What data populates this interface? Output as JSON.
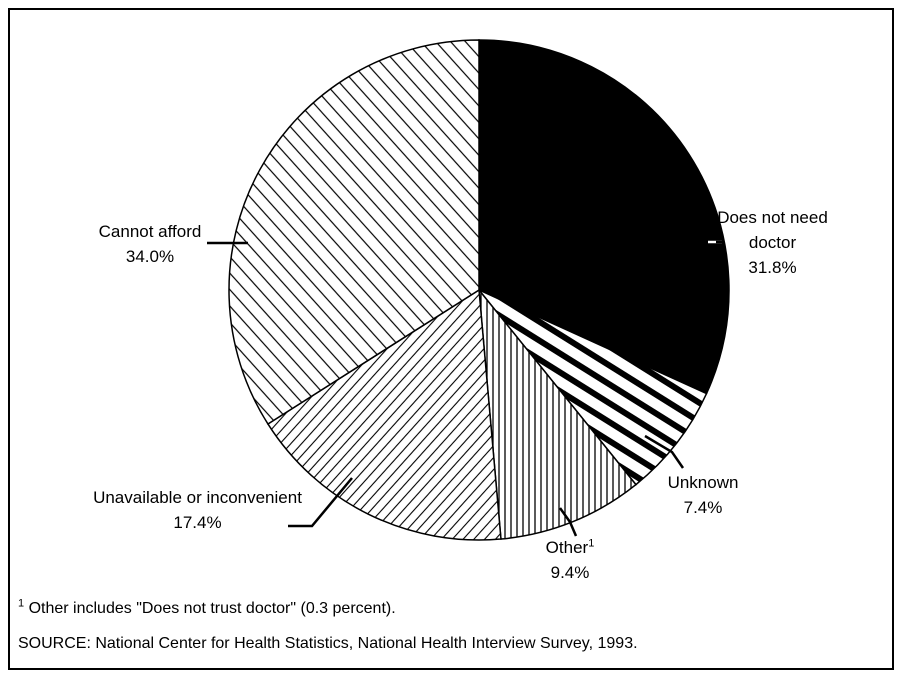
{
  "chart_data": {
    "type": "pie",
    "categories": [
      "Does not need doctor",
      "Unknown",
      "Other",
      "Unavailable or inconvenient",
      "Cannot afford"
    ],
    "values": [
      31.8,
      7.4,
      9.4,
      17.4,
      34.0
    ],
    "value_labels": [
      "31.8%",
      "7.4%",
      "9.4%",
      "17.4%",
      "34.0%"
    ],
    "footnote": {
      "marker": "1",
      "text": "Other includes \"Does not trust doctor\" (0.3 percent)."
    },
    "source": "SOURCE: National Center for Health Statistics, National Health Interview Survey, 1993."
  }
}
